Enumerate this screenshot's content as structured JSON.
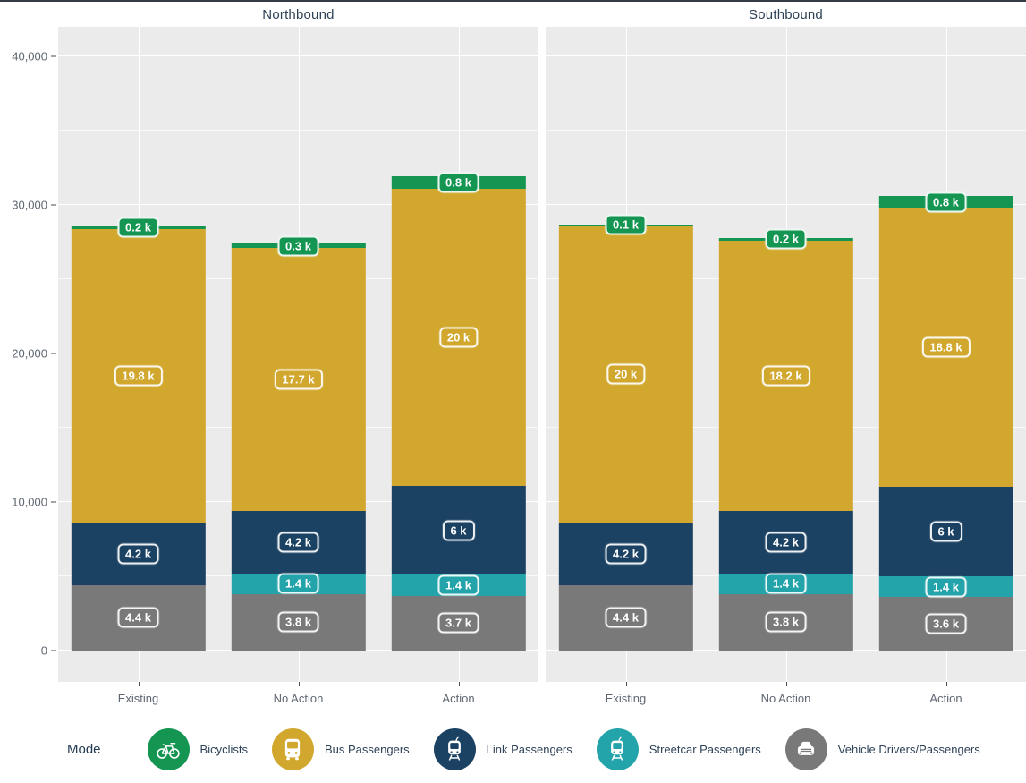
{
  "colors": {
    "panel_bg": "#EBEBEB",
    "grid_major": "#FFFFFF",
    "top_border": "#333B44",
    "strip_text": "#2E4257",
    "axis_text": "#5E6671",
    "green": "#149552",
    "gold": "#D1A72E",
    "navy": "#1C4263",
    "teal": "#23A3AA",
    "gray": "#797979"
  },
  "y_axis": {
    "ticks": [
      {
        "value": 0,
        "label": "0"
      },
      {
        "value": 10,
        "label": "10,000"
      },
      {
        "value": 20,
        "label": "20,000"
      },
      {
        "value": 30,
        "label": "30,000"
      },
      {
        "value": 40,
        "label": "40,000"
      }
    ]
  },
  "legend": {
    "title": "Mode",
    "items": [
      {
        "label": "Bicyclists",
        "color": "#149552",
        "icon": "bicycle-icon"
      },
      {
        "label": "Bus Passengers",
        "color": "#D1A72E",
        "icon": "bus-icon"
      },
      {
        "label": "Link Passengers",
        "color": "#1C4263",
        "icon": "link-train-icon"
      },
      {
        "label": "Streetcar Passengers",
        "color": "#23A3AA",
        "icon": "streetcar-icon"
      },
      {
        "label": "Vehicle Drivers/Passengers",
        "color": "#797979",
        "icon": "car-icon"
      }
    ]
  },
  "chart_data": {
    "type": "bar",
    "stacked": true,
    "grid": true,
    "legend_position": "bottom",
    "value_unit": "thousands of people",
    "ylim": [
      0,
      40000
    ],
    "y_tick_step": 10000,
    "categories": [
      "Existing",
      "No Action",
      "Action"
    ],
    "facets": [
      {
        "title": "Northbound",
        "series": [
          {
            "name": "Vehicle Drivers/Passengers",
            "color": "#797979",
            "label_style": "outline",
            "values": [
              4.4,
              3.8,
              3.7
            ],
            "labels": [
              "4.4 k",
              "3.8 k",
              "3.7 k"
            ]
          },
          {
            "name": "Streetcar Passengers",
            "color": "#23A3AA",
            "label_style": "outline",
            "values": [
              0,
              1.4,
              1.4
            ],
            "labels": [
              "",
              "1.4 k",
              "1.4 k"
            ]
          },
          {
            "name": "Link Passengers",
            "color": "#1C4263",
            "label_style": "outline",
            "values": [
              4.2,
              4.2,
              6
            ],
            "labels": [
              "4.2 k",
              "4.2 k",
              "6 k"
            ]
          },
          {
            "name": "Bus Passengers",
            "color": "#D1A72E",
            "label_style": "outline",
            "values": [
              19.8,
              17.7,
              20
            ],
            "labels": [
              "19.8 k",
              "17.7 k",
              "20 k"
            ]
          },
          {
            "name": "Bicyclists",
            "color": "#149552",
            "label_style": "filled",
            "values": [
              0.2,
              0.3,
              0.8
            ],
            "labels": [
              "0.2 k",
              "0.3 k",
              "0.8 k"
            ]
          }
        ]
      },
      {
        "title": "Southbound",
        "series": [
          {
            "name": "Vehicle Drivers/Passengers",
            "color": "#797979",
            "label_style": "outline",
            "values": [
              4.4,
              3.8,
              3.6
            ],
            "labels": [
              "4.4 k",
              "3.8 k",
              "3.6 k"
            ]
          },
          {
            "name": "Streetcar Passengers",
            "color": "#23A3AA",
            "label_style": "outline",
            "values": [
              0,
              1.4,
              1.4
            ],
            "labels": [
              "",
              "1.4 k",
              "1.4 k"
            ]
          },
          {
            "name": "Link Passengers",
            "color": "#1C4263",
            "label_style": "outline",
            "values": [
              4.2,
              4.2,
              6
            ],
            "labels": [
              "4.2 k",
              "4.2 k",
              "6 k"
            ]
          },
          {
            "name": "Bus Passengers",
            "color": "#D1A72E",
            "label_style": "outline",
            "values": [
              20,
              18.2,
              18.8
            ],
            "labels": [
              "20 k",
              "18.2 k",
              "18.8 k"
            ]
          },
          {
            "name": "Bicyclists",
            "color": "#149552",
            "label_style": "filled",
            "values": [
              0.1,
              0.2,
              0.8
            ],
            "labels": [
              "0.1 k",
              "0.2 k",
              "0.8 k"
            ]
          }
        ]
      }
    ]
  }
}
